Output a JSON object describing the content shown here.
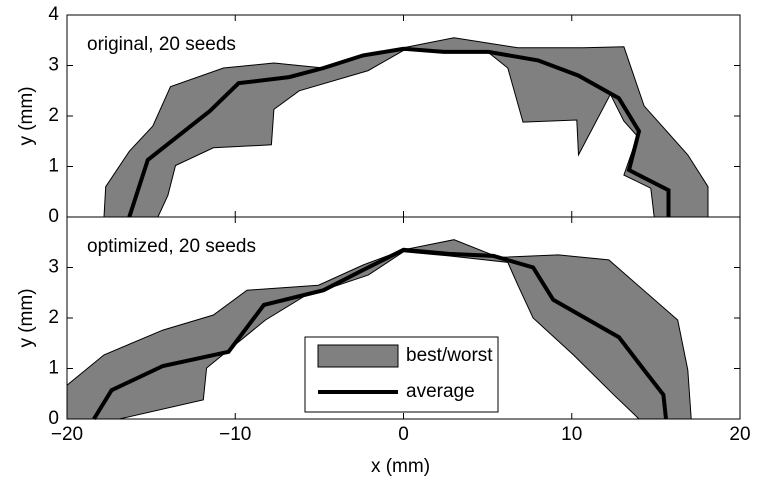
{
  "chart_data": [
    {
      "type": "line",
      "title": "original, 20 seeds",
      "ylabel": "y (mm)",
      "xlim": [
        -20,
        20
      ],
      "xticks": [
        -20,
        -10,
        0,
        10,
        20
      ],
      "ylim": [
        0,
        4
      ],
      "yticks": [
        0,
        1,
        2,
        3,
        4
      ],
      "series": [
        {
          "color": "#808080",
          "fill": true,
          "x": [
            -17.8,
            -17.7,
            -16.3,
            -14.9,
            -13.85,
            -10.7,
            -7.7,
            -4.75,
            -2.4,
            0,
            3.0,
            6.8,
            10.7,
            13.1,
            14.3,
            16.9,
            18.1,
            18.1,
            14.9,
            14.7,
            13.1,
            13.9,
            13.1,
            12.3,
            10.4,
            10.3,
            7.1,
            6.2,
            5.0,
            0,
            -2.1,
            -6.2,
            -7.7,
            -7.85,
            -11.3,
            -13.55,
            -14.0,
            -14.6
          ],
          "values": [
            0,
            0.6,
            1.3,
            1.8,
            2.58,
            2.95,
            3.05,
            2.95,
            3.2,
            3.35,
            3.55,
            3.35,
            3.35,
            3.37,
            2.2,
            1.23,
            0.6,
            0,
            0,
            0.57,
            0.83,
            1.6,
            1.9,
            2.43,
            1.23,
            1.92,
            1.88,
            2.95,
            3.27,
            3.3,
            2.9,
            2.5,
            2.13,
            1.43,
            1.37,
            1.02,
            0.43,
            0
          ]
        },
        {
          "color": "#000000",
          "x": [
            -16.3,
            -15.2,
            -11.5,
            -9.8,
            -6.8,
            -4.75,
            -2.4,
            0,
            2.4,
            5.05,
            8.0,
            10.4,
            12.8,
            14.0,
            13.4,
            15.75,
            15.75
          ],
          "values": [
            0,
            1.13,
            2.1,
            2.65,
            2.77,
            2.95,
            3.2,
            3.33,
            3.27,
            3.27,
            3.1,
            2.8,
            2.35,
            1.7,
            0.93,
            0.53,
            0
          ]
        }
      ]
    },
    {
      "type": "line",
      "title": "optimized, 20 seeds",
      "ylabel": "y (mm)",
      "xlabel": "x (mm)",
      "xlim": [
        -20,
        20
      ],
      "xticks": [
        {
          "value": -20,
          "label": "−20"
        },
        {
          "value": -10,
          "label": "−10"
        },
        0,
        10,
        20
      ],
      "ylim": [
        0,
        4
      ],
      "yticks": [
        0,
        1,
        2,
        3
      ],
      "legend": "lower center",
      "series": [
        {
          "name": "best/worst",
          "color": "#808080",
          "fill": true,
          "x": [
            -20,
            -20,
            -17.8,
            -14.3,
            -11.3,
            -9.3,
            -5.05,
            -2.4,
            0,
            3.0,
            5.65,
            9.2,
            12.2,
            16.3,
            16.9,
            17.1,
            14.0,
            12.5,
            10.1,
            7.7,
            6.8,
            6.2,
            2.7,
            0,
            -2.1,
            -5.95,
            -8.2,
            -11.7,
            -11.9,
            -16.9
          ],
          "values": [
            0,
            0.67,
            1.27,
            1.76,
            2.06,
            2.55,
            2.65,
            3.05,
            3.35,
            3.55,
            3.2,
            3.25,
            3.15,
            1.96,
            0.97,
            0,
            0,
            0.48,
            1.27,
            2.0,
            2.65,
            3.1,
            3.23,
            3.31,
            2.85,
            2.42,
            1.96,
            1.01,
            0.38,
            0
          ]
        },
        {
          "name": "average",
          "color": "#000000",
          "x": [
            -18.4,
            -17.35,
            -14.3,
            -10.4,
            -8.3,
            -4.75,
            -2.4,
            0,
            2.7,
            5.35,
            7.7,
            8.9,
            12.8,
            14.3,
            15.45,
            15.6
          ],
          "values": [
            0,
            0.57,
            1.05,
            1.33,
            2.26,
            2.55,
            2.95,
            3.35,
            3.27,
            3.23,
            3.0,
            2.36,
            1.62,
            0.97,
            0.48,
            0
          ]
        }
      ]
    }
  ]
}
